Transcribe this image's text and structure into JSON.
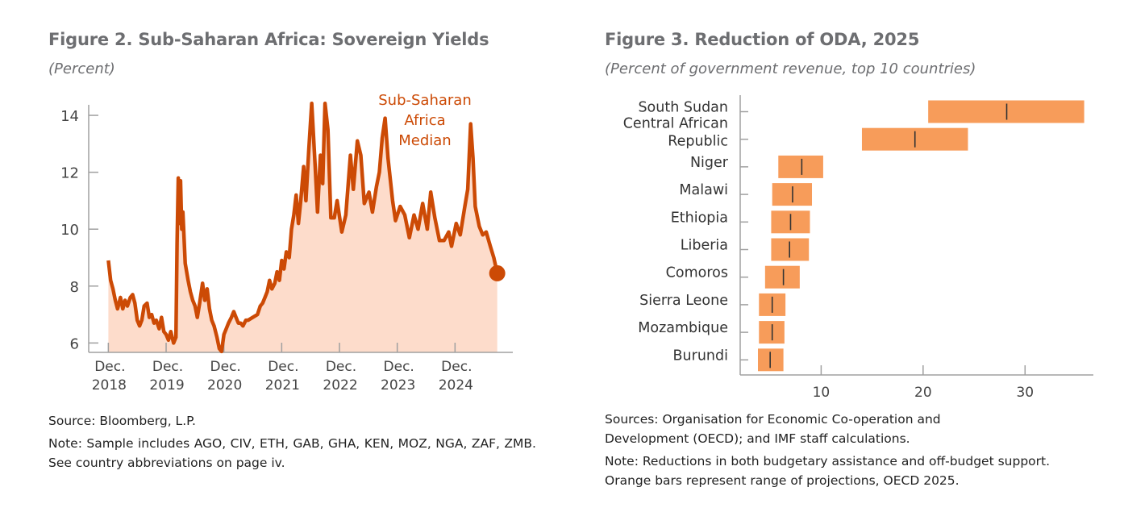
{
  "chart_data": [
    {
      "type": "area",
      "title": "Figure 2. Sub-Saharan Africa: Sovereign Yields",
      "subtitle": "(Percent)",
      "xlabel": "",
      "ylabel": "Percent",
      "ylim": [
        5.67,
        14.37
      ],
      "xlim": [
        2018.58,
        2025.92
      ],
      "yticks": [
        6,
        8,
        10,
        12,
        14
      ],
      "xticks": [
        {
          "x": 2018.92,
          "l1": "Dec.",
          "l2": "2018"
        },
        {
          "x": 2019.92,
          "l1": "Dec.",
          "l2": "2019"
        },
        {
          "x": 2020.92,
          "l1": "Dec.",
          "l2": "2020"
        },
        {
          "x": 2021.92,
          "l1": "Dec.",
          "l2": "2021"
        },
        {
          "x": 2022.92,
          "l1": "Dec.",
          "l2": "2022"
        },
        {
          "x": 2023.92,
          "l1": "Dec.",
          "l2": "2023"
        },
        {
          "x": 2024.92,
          "l1": "Dec.",
          "l2": "2024"
        }
      ],
      "series": [
        {
          "name": "Sub-Saharan Africa Median",
          "annotation": [
            "Sub-Saharan",
            "Africa",
            "Median"
          ],
          "color": "#cc4a05",
          "fill": "#fddccb",
          "x": [
            2018.92,
            2018.96,
            2019.0,
            2019.04,
            2019.08,
            2019.13,
            2019.17,
            2019.21,
            2019.25,
            2019.3,
            2019.34,
            2019.38,
            2019.42,
            2019.46,
            2019.5,
            2019.54,
            2019.59,
            2019.63,
            2019.67,
            2019.71,
            2019.75,
            2019.8,
            2019.84,
            2019.88,
            2019.92,
            2019.96,
            2020.0,
            2020.05,
            2020.09,
            2020.11,
            2020.13,
            2020.15,
            2020.17,
            2020.19,
            2020.21,
            2020.25,
            2020.3,
            2020.34,
            2020.38,
            2020.42,
            2020.46,
            2020.5,
            2020.55,
            2020.59,
            2020.63,
            2020.67,
            2020.71,
            2020.75,
            2020.8,
            2020.84,
            2020.88,
            2020.92,
            2020.96,
            2021.0,
            2021.05,
            2021.09,
            2021.13,
            2021.17,
            2021.21,
            2021.25,
            2021.3,
            2021.34,
            2021.42,
            2021.5,
            2021.55,
            2021.59,
            2021.63,
            2021.67,
            2021.71,
            2021.75,
            2021.8,
            2021.84,
            2021.88,
            2021.92,
            2021.96,
            2022.0,
            2022.05,
            2022.09,
            2022.13,
            2022.17,
            2022.21,
            2022.25,
            2022.3,
            2022.34,
            2022.39,
            2022.44,
            2022.5,
            2022.54,
            2022.59,
            2022.63,
            2022.67,
            2022.72,
            2022.77,
            2022.83,
            2022.88,
            2022.96,
            2023.03,
            2023.11,
            2023.16,
            2023.23,
            2023.29,
            2023.35,
            2023.43,
            2023.49,
            2023.56,
            2023.61,
            2023.66,
            2023.71,
            2023.76,
            2023.84,
            2023.89,
            2023.97,
            2024.05,
            2024.13,
            2024.21,
            2024.28,
            2024.36,
            2024.44,
            2024.5,
            2024.57,
            2024.65,
            2024.73,
            2024.81,
            2024.86,
            2024.94,
            2025.01,
            2025.09,
            2025.14,
            2025.19,
            2025.23,
            2025.27,
            2025.34,
            2025.4,
            2025.46,
            2025.53,
            2025.59,
            2025.65
          ],
          "y": [
            8.9,
            8.2,
            7.9,
            7.5,
            7.2,
            7.6,
            7.2,
            7.5,
            7.3,
            7.6,
            7.7,
            7.4,
            6.8,
            6.6,
            6.8,
            7.3,
            7.4,
            6.9,
            7.0,
            6.7,
            6.8,
            6.5,
            6.9,
            6.4,
            6.3,
            6.1,
            6.4,
            6.0,
            6.2,
            9.5,
            11.8,
            10.2,
            11.7,
            10.0,
            10.6,
            8.8,
            8.2,
            7.8,
            7.5,
            7.3,
            6.9,
            7.4,
            8.1,
            7.5,
            7.9,
            7.2,
            6.8,
            6.6,
            6.2,
            5.8,
            5.7,
            6.3,
            6.5,
            6.7,
            6.9,
            7.1,
            6.9,
            6.7,
            6.7,
            6.6,
            6.8,
            6.8,
            6.9,
            7.0,
            7.3,
            7.4,
            7.6,
            7.8,
            8.2,
            7.9,
            8.1,
            8.5,
            8.2,
            8.9,
            8.6,
            9.2,
            9.0,
            10.0,
            10.5,
            11.2,
            10.2,
            11.0,
            12.2,
            11.0,
            12.8,
            14.5,
            12.2,
            10.6,
            12.6,
            11.6,
            14.5,
            13.5,
            10.4,
            10.4,
            11.0,
            9.9,
            10.5,
            12.6,
            11.4,
            13.1,
            12.6,
            10.9,
            11.3,
            10.6,
            11.5,
            12.0,
            13.2,
            13.9,
            12.5,
            11.0,
            10.3,
            10.8,
            10.5,
            9.7,
            10.5,
            10.0,
            10.9,
            10.0,
            11.3,
            10.4,
            9.6,
            9.6,
            9.9,
            9.4,
            10.2,
            9.8,
            10.8,
            11.4,
            13.7,
            12.5,
            10.8,
            10.1,
            9.8,
            9.9,
            9.4,
            9.0,
            8.45
          ]
        }
      ]
    },
    {
      "type": "range-bar",
      "title": "Figure 3. Reduction of ODA, 2025",
      "subtitle": "(Percent of government revenue, top 10 countries)",
      "xlim": [
        2.06,
        36.7
      ],
      "xticks": [
        10,
        20,
        30
      ],
      "categories": [
        [
          "South Sudan"
        ],
        [
          "Central African",
          "Republic"
        ],
        [
          "Niger"
        ],
        [
          "Malawi"
        ],
        [
          "Ethiopia"
        ],
        [
          "Liberia"
        ],
        [
          "Comoros"
        ],
        [
          "Sierra Leone"
        ],
        [
          "Mozambique"
        ],
        [
          "Burundi"
        ]
      ],
      "low": [
        20.5,
        14.0,
        5.8,
        5.2,
        5.1,
        5.1,
        4.5,
        3.9,
        3.9,
        3.8
      ],
      "high": [
        35.8,
        24.4,
        10.2,
        9.1,
        8.9,
        8.8,
        7.9,
        6.5,
        6.4,
        6.3
      ],
      "mid": [
        28.2,
        19.2,
        8.1,
        7.2,
        7.0,
        6.9,
        6.3,
        5.2,
        5.2,
        5.0
      ],
      "bar_color": "#f79c5a",
      "mid_color": "#333333"
    }
  ],
  "left_notes": {
    "source": "Source: Bloomberg, L.P.",
    "note": "Note: Sample includes AGO, CIV, ETH, GAB, GHA, KEN, MOZ, NGA, ZAF, ZMB. See country abbreviations on page iv."
  },
  "right_notes": {
    "source": "Sources: Organisation for Economic Co-operation and Development (OECD); and IMF staff calculations.",
    "note": "Note: Reductions in both budgetary assistance and off-budget support. Orange bars represent range of projections, OECD 2025."
  }
}
